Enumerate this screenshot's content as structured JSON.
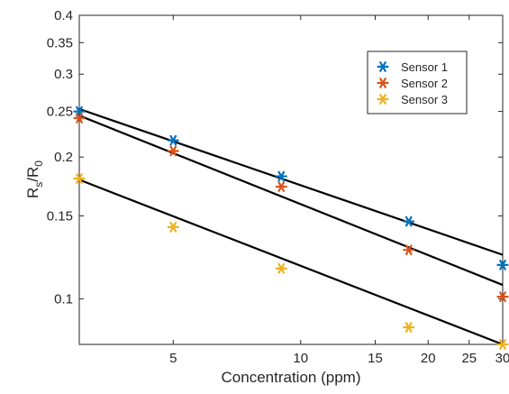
{
  "chart_data": {
    "type": "scatter",
    "xscale": "log",
    "yscale": "log",
    "xlabel": "Concentration (ppm)",
    "ylabel": {
      "main": "R",
      "sub1": "s",
      "sep": "/R",
      "sub2": "0"
    },
    "xlim": [
      3,
      30
    ],
    "ylim": [
      0.08,
      0.4
    ],
    "xticks": [
      5,
      10,
      15,
      20,
      25,
      30
    ],
    "xtick_labels": [
      "5",
      "10",
      "15",
      "20",
      "25",
      "30"
    ],
    "yticks": [
      0.1,
      0.15,
      0.2,
      0.25,
      0.3,
      0.35,
      0.4
    ],
    "ytick_labels": [
      "0.1",
      "0.15",
      "0.2",
      "0.25",
      "0.3",
      "0.35",
      "0.4"
    ],
    "grid": false,
    "legend_position": "top-right",
    "marker": "asterisk",
    "series": [
      {
        "name": "Sensor 1",
        "color": "#0072BD",
        "x": [
          3,
          5,
          9,
          18,
          30
        ],
        "y": [
          0.25,
          0.217,
          0.182,
          0.146,
          0.118
        ],
        "fit": {
          "x": [
            3,
            30
          ],
          "y": [
            0.253,
            0.124
          ]
        }
      },
      {
        "name": "Sensor 2",
        "color": "#D95319",
        "x": [
          3,
          5,
          9,
          18,
          30
        ],
        "y": [
          0.242,
          0.206,
          0.173,
          0.127,
          0.101
        ],
        "fit": {
          "x": [
            3,
            30
          ],
          "y": [
            0.245,
            0.107
          ]
        }
      },
      {
        "name": "Sensor 3",
        "color": "#EDB120",
        "x": [
          3,
          5,
          9,
          18,
          30
        ],
        "y": [
          0.18,
          0.142,
          0.116,
          0.087,
          0.08
        ],
        "fit": {
          "x": [
            3,
            30
          ],
          "y": [
            0.179,
            0.08
          ]
        }
      }
    ]
  }
}
